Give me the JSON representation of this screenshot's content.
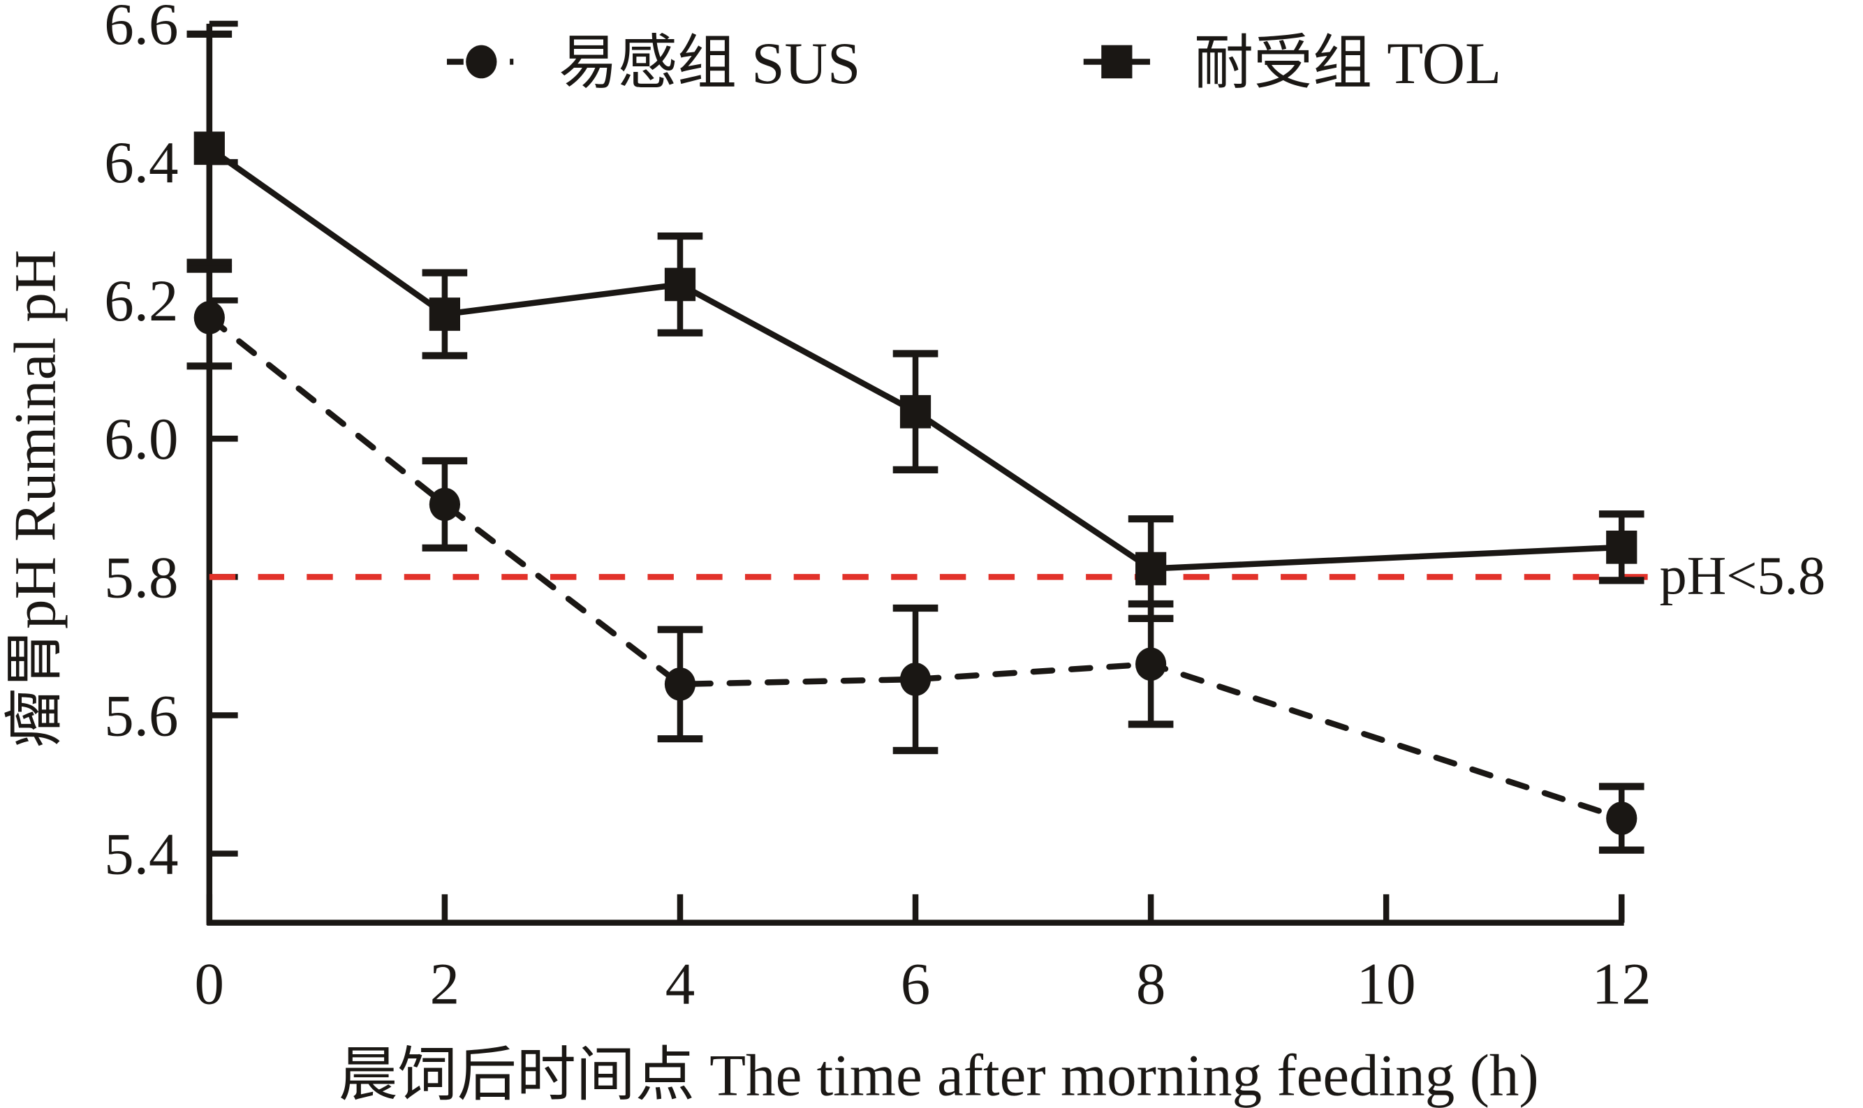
{
  "chart_data": {
    "type": "line",
    "title": "",
    "xlabel": "晨饲后时间点 The time after morning feeding (h)",
    "ylabel": "瘤胃pH Ruminal pH",
    "x_ticks": [
      "0",
      "2",
      "4",
      "6",
      "8",
      "10",
      "12"
    ],
    "y_ticks": [
      "5.4",
      "5.6",
      "5.8",
      "6.0",
      "6.2",
      "6.4",
      "6.6"
    ],
    "xlim": [
      0,
      12
    ],
    "ylim": [
      5.3,
      6.6
    ],
    "grid": false,
    "legend_position": "top",
    "x": [
      0,
      2,
      4,
      6,
      8,
      12
    ],
    "series": [
      {
        "name": "易感组 SUS",
        "marker": "circle",
        "line_style": "dashed",
        "color": "#1a1714",
        "values": [
          6.175,
          5.905,
          5.645,
          5.652,
          5.674,
          5.451
        ],
        "errors": [
          0.07,
          0.063,
          0.079,
          0.103,
          0.087,
          0.046
        ]
      },
      {
        "name": "耐受组 TOL",
        "marker": "square",
        "line_style": "solid",
        "color": "#1a1714",
        "values": [
          6.42,
          6.18,
          6.223,
          6.039,
          5.812,
          5.843
        ],
        "errors": [
          0.165,
          0.06,
          0.07,
          0.084,
          0.072,
          0.048
        ]
      }
    ],
    "reference_line": {
      "y": 5.8,
      "label": "pH<5.8",
      "color": "#e2322a",
      "line_style": "dashed"
    }
  }
}
